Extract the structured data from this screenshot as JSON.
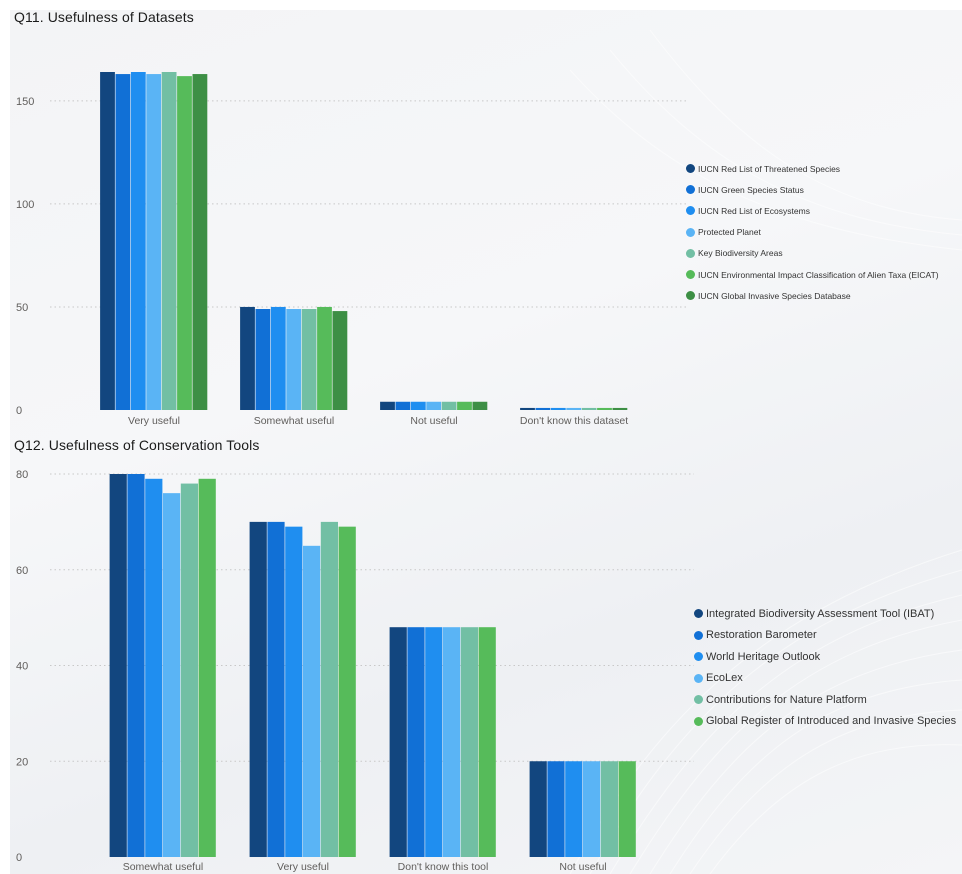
{
  "colors": {
    "s1": "#12467f",
    "s2": "#1170d6",
    "s3": "#1f8ef0",
    "s4": "#5ab4f5",
    "s5": "#72bfa4",
    "s6": "#56bb5a",
    "s7": "#3d8f45"
  },
  "chart_data": [
    {
      "type": "bar",
      "title": "Q11. Usefulness of Datasets",
      "categories": [
        "Very useful",
        "Somewhat useful",
        "Not useful",
        "Don't know this dataset"
      ],
      "ylim": [
        0,
        165
      ],
      "yticks": [
        0,
        50,
        100,
        150
      ],
      "grid": true,
      "legend_position": "right",
      "series": [
        {
          "name": "IUCN Red List of Threatened Species",
          "color": "#12467f",
          "values": [
            164,
            50,
            4,
            1
          ]
        },
        {
          "name": "IUCN Green Species Status",
          "color": "#1170d6",
          "values": [
            163,
            49,
            4,
            1
          ]
        },
        {
          "name": "IUCN Red List of Ecosystems",
          "color": "#1f8ef0",
          "values": [
            164,
            50,
            4,
            1
          ]
        },
        {
          "name": "Protected Planet",
          "color": "#5ab4f5",
          "values": [
            163,
            49,
            4,
            1
          ]
        },
        {
          "name": "Key Biodiversity Areas",
          "color": "#72bfa4",
          "values": [
            164,
            49,
            4,
            1
          ]
        },
        {
          "name": "IUCN Environmental Impact Classification of Alien Taxa (EICAT)",
          "color": "#56bb5a",
          "values": [
            162,
            50,
            4,
            1
          ]
        },
        {
          "name": "IUCN Global Invasive Species Database",
          "color": "#3d8f45",
          "values": [
            163,
            48,
            4,
            1
          ]
        }
      ]
    },
    {
      "type": "bar",
      "title": "Q12. Usefulness of Conservation Tools",
      "categories": [
        "Somewhat useful",
        "Very useful",
        "Don't know this tool",
        "Not useful"
      ],
      "ylim": [
        0,
        80
      ],
      "yticks": [
        0,
        20,
        40,
        60,
        80
      ],
      "grid": true,
      "legend_position": "right",
      "series": [
        {
          "name": "Integrated Biodiversity Assessment Tool (IBAT)",
          "color": "#12467f",
          "values": [
            80,
            70,
            48,
            20
          ]
        },
        {
          "name": "Restoration Barometer",
          "color": "#1170d6",
          "values": [
            80,
            70,
            48,
            20
          ]
        },
        {
          "name": "World Heritage Outlook",
          "color": "#1f8ef0",
          "values": [
            79,
            69,
            48,
            20
          ]
        },
        {
          "name": "EcoLex",
          "color": "#5ab4f5",
          "values": [
            76,
            65,
            48,
            20
          ]
        },
        {
          "name": "Contributions for Nature Platform",
          "color": "#72bfa4",
          "values": [
            78,
            70,
            48,
            20
          ]
        },
        {
          "name": "Global Register of Introduced and Invasive Species",
          "color": "#56bb5a",
          "values": [
            79,
            69,
            48,
            20
          ]
        }
      ]
    }
  ]
}
